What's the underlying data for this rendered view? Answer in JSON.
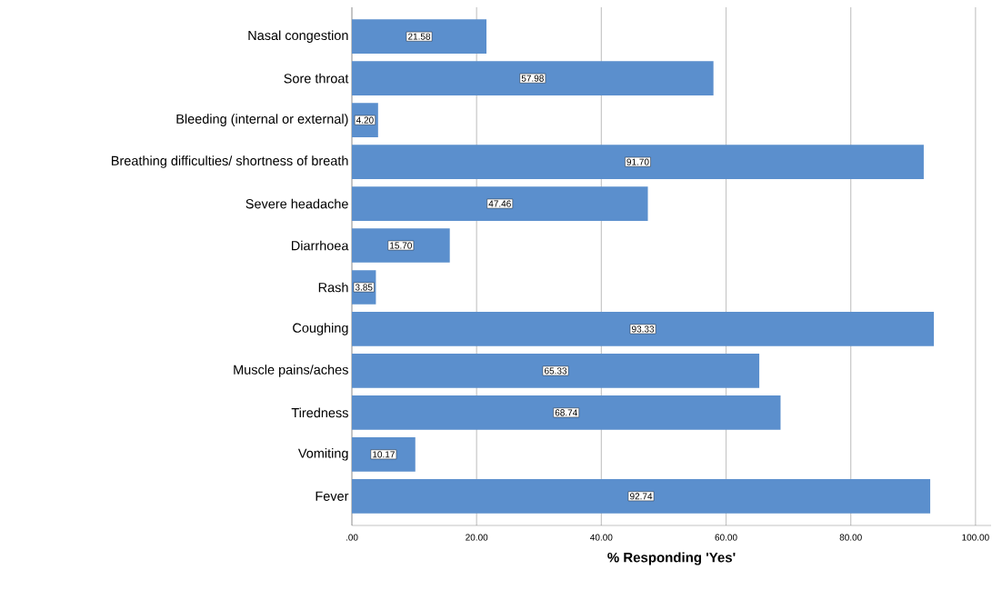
{
  "chart_data": {
    "type": "bar",
    "orientation": "horizontal",
    "xlabel": "% Responding 'Yes'",
    "categories": [
      "Nasal congestion",
      "Sore throat",
      "Bleeding (internal or external)",
      "Breathing difficulties/ shortness of breath",
      "Severe headache",
      "Diarrhoea",
      "Rash",
      "Coughing",
      "Muscle pains/aches",
      "Tiredness",
      "Vomiting",
      "Fever"
    ],
    "values": [
      21.58,
      57.98,
      4.2,
      91.7,
      47.46,
      15.7,
      3.85,
      93.33,
      65.33,
      68.74,
      10.17,
      92.74
    ],
    "value_labels": [
      "21.58",
      "57.98",
      "4.20",
      "91.70",
      "47.46",
      "15.70",
      "3.85",
      "93.33",
      "65.33",
      "68.74",
      "10.17",
      "92.74"
    ],
    "color": "#5b8fcd",
    "xlim": [
      0,
      102.5
    ],
    "xticks": [
      {
        "value": 0,
        "label": ".00"
      },
      {
        "value": 20,
        "label": "20.00"
      },
      {
        "value": 40,
        "label": "40.00"
      },
      {
        "value": 60,
        "label": "60.00"
      },
      {
        "value": 80,
        "label": "80.00"
      },
      {
        "value": 100,
        "label": "100.00"
      }
    ],
    "grid": "x"
  }
}
